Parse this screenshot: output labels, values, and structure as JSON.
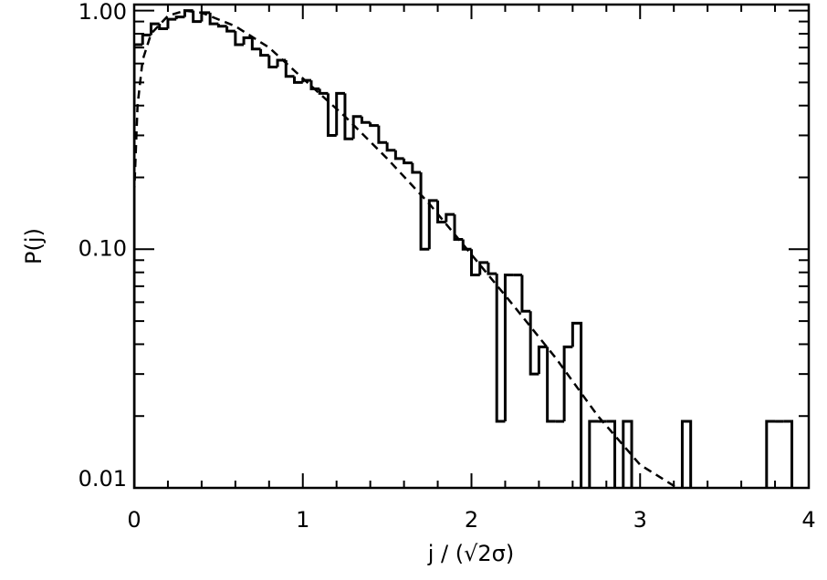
{
  "chart_data": {
    "type": "histogram",
    "x_label": "j / (√2σ)",
    "y_label": "P(j)",
    "bins": [
      0,
      0.05,
      0.1,
      0.15,
      0.2,
      0.25,
      0.3,
      0.35,
      0.4,
      0.45,
      0.5,
      0.55,
      0.6,
      0.65,
      0.7,
      0.75,
      0.8,
      0.85,
      0.9,
      0.95,
      1.0,
      1.05,
      1.1,
      1.15,
      1.2,
      1.25,
      1.3,
      1.35,
      1.4,
      1.45,
      1.5,
      1.55,
      1.6,
      1.65,
      1.7,
      1.75,
      1.8,
      1.85,
      1.9,
      1.95,
      2.0,
      2.05,
      2.1,
      2.15,
      2.2,
      2.25,
      2.3,
      2.35,
      2.4,
      2.45,
      2.5,
      2.55,
      2.6,
      2.65,
      2.7,
      2.75,
      2.8,
      2.85,
      2.9,
      2.95,
      3.0,
      3.05,
      3.1,
      3.15,
      3.2,
      3.25,
      3.3,
      3.35,
      3.4,
      3.45,
      3.5,
      3.55,
      3.6,
      3.65,
      3.7,
      3.75,
      3.8,
      3.85,
      3.9
    ],
    "values": [
      0.72,
      0.79,
      0.88,
      0.84,
      0.92,
      0.94,
      1.0,
      0.9,
      0.98,
      0.88,
      0.86,
      0.82,
      0.72,
      0.77,
      0.69,
      0.65,
      0.58,
      0.62,
      0.53,
      0.5,
      0.51,
      0.47,
      0.45,
      0.3,
      0.45,
      0.29,
      0.36,
      0.34,
      0.33,
      0.28,
      0.26,
      0.24,
      0.23,
      0.21,
      0.1,
      0.16,
      0.13,
      0.14,
      0.11,
      0.1,
      0.078,
      0.088,
      0.079,
      0.019,
      0.078,
      0.078,
      0.055,
      0.03,
      0.039,
      0.019,
      0.019,
      0.039,
      0.049,
      null,
      0.019,
      0.019,
      0.019,
      null,
      0.019,
      null,
      null,
      null,
      null,
      null,
      null,
      0.019,
      null,
      null,
      null,
      null,
      null,
      null,
      null,
      null,
      null,
      0.019,
      0.019,
      0.019
    ],
    "color": "#000000",
    "curve": {
      "x": [
        0,
        0.02,
        0.05,
        0.1,
        0.2,
        0.3,
        0.4,
        0.6,
        0.8,
        1.0,
        1.25,
        1.5,
        1.75,
        2.0,
        2.25,
        2.5,
        2.75,
        3.0,
        3.22
      ],
      "values": [
        0.17,
        0.4,
        0.62,
        0.8,
        0.95,
        1.0,
        0.98,
        0.86,
        0.7,
        0.52,
        0.36,
        0.24,
        0.155,
        0.095,
        0.058,
        0.035,
        0.02,
        0.0125,
        0.01
      ],
      "color": "#000000"
    },
    "xlim": [
      0,
      4
    ],
    "xticks": [
      0,
      1,
      2,
      3,
      4
    ],
    "ylim": [
      0.01,
      1.06
    ],
    "yticks": [
      {
        "value": 0.01,
        "label": "0.01"
      },
      {
        "value": 0.1,
        "label": "0.10"
      },
      {
        "value": 1,
        "label": "1.00"
      }
    ],
    "yscale": "log"
  }
}
